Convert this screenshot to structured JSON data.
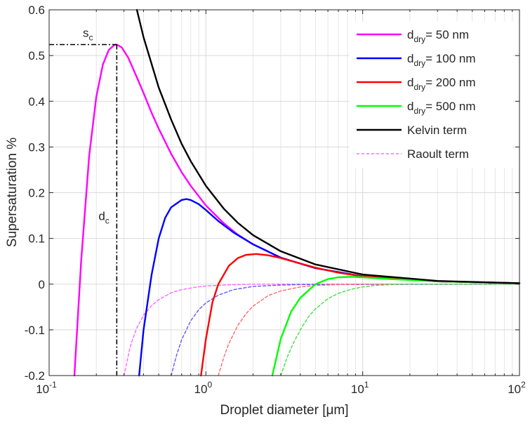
{
  "chart_data": {
    "type": "line",
    "title": "",
    "xlabel": "Droplet diameter [μm]",
    "ylabel": "Supersaturation %",
    "xscale": "log",
    "xlim": [
      0.1,
      100
    ],
    "ylim": [
      -0.2,
      0.6
    ],
    "grid": true,
    "legend_position": "top-right",
    "xticks": [
      {
        "value": 0.1,
        "base": "10",
        "exp": "-1"
      },
      {
        "value": 1,
        "base": "10",
        "exp": "0"
      },
      {
        "value": 10,
        "base": "10",
        "exp": "1"
      },
      {
        "value": 100,
        "base": "10",
        "exp": "2"
      }
    ],
    "yticks": [
      "-0.2",
      "-0.1",
      "0",
      "0.1",
      "0.2",
      "0.3",
      "0.4",
      "0.5",
      "0.6"
    ],
    "series": [
      {
        "name": "d_dry = 50 nm",
        "legend_main": "d",
        "legend_sub": "dry",
        "legend_rest": "= 50 nm",
        "color": "#ff00ff",
        "style": "solid",
        "x": [
          0.145,
          0.16,
          0.18,
          0.2,
          0.22,
          0.24,
          0.26,
          0.27,
          0.29,
          0.32,
          0.36,
          0.4,
          0.45,
          0.5,
          0.6,
          0.7,
          0.8,
          1.0,
          1.3,
          1.6,
          2.0,
          3.0,
          5.0,
          10,
          30,
          100
        ],
        "y": [
          -0.2,
          0.05,
          0.28,
          0.41,
          0.48,
          0.512,
          0.523,
          0.524,
          0.518,
          0.495,
          0.455,
          0.418,
          0.375,
          0.34,
          0.285,
          0.245,
          0.215,
          0.172,
          0.133,
          0.108,
          0.087,
          0.058,
          0.035,
          0.017,
          0.006,
          0.002
        ]
      },
      {
        "name": "d_dry = 100 nm",
        "legend_main": "d",
        "legend_sub": "dry",
        "legend_rest": "= 100 nm",
        "color": "#0000ff",
        "style": "solid",
        "x": [
          0.375,
          0.4,
          0.45,
          0.5,
          0.55,
          0.6,
          0.7,
          0.75,
          0.8,
          0.9,
          1.0,
          1.2,
          1.5,
          2.0,
          3.0,
          5.0,
          10,
          30,
          100
        ],
        "y": [
          -0.2,
          -0.1,
          0.02,
          0.1,
          0.145,
          0.168,
          0.184,
          0.186,
          0.184,
          0.175,
          0.162,
          0.138,
          0.113,
          0.087,
          0.058,
          0.035,
          0.017,
          0.006,
          0.002
        ]
      },
      {
        "name": "d_dry = 200 nm",
        "legend_main": "d",
        "legend_sub": "dry",
        "legend_rest": "= 200 nm",
        "color": "#ff0000",
        "style": "solid",
        "x": [
          0.93,
          1.0,
          1.1,
          1.2,
          1.4,
          1.6,
          1.8,
          2.1,
          2.5,
          3.0,
          4.0,
          5.0,
          7.0,
          10,
          30,
          100
        ],
        "y": [
          -0.2,
          -0.12,
          -0.04,
          0.0,
          0.04,
          0.057,
          0.064,
          0.066,
          0.063,
          0.057,
          0.045,
          0.036,
          0.025,
          0.017,
          0.006,
          0.002
        ]
      },
      {
        "name": "d_dry = 500 nm",
        "legend_main": "d",
        "legend_sub": "dry",
        "legend_rest": "= 500 nm",
        "color": "#00ff00",
        "style": "solid",
        "x": [
          2.65,
          3.0,
          3.5,
          4.0,
          5.0,
          6.0,
          7.0,
          8.5,
          10,
          15,
          30,
          100
        ],
        "y": [
          -0.2,
          -0.12,
          -0.06,
          -0.03,
          0.0,
          0.011,
          0.015,
          0.016,
          0.015,
          0.011,
          0.006,
          0.002
        ]
      },
      {
        "name": "Kelvin term",
        "legend_main": "Kelvin term",
        "legend_sub": "",
        "legend_rest": "",
        "color": "#000000",
        "style": "solid",
        "x": [
          0.363,
          0.4,
          0.5,
          0.6,
          0.7,
          0.8,
          1.0,
          1.3,
          1.6,
          2.0,
          3.0,
          5.0,
          10,
          30,
          100
        ],
        "y": [
          0.6,
          0.54,
          0.43,
          0.36,
          0.307,
          0.269,
          0.215,
          0.165,
          0.134,
          0.107,
          0.072,
          0.043,
          0.021,
          0.007,
          0.002
        ]
      },
      {
        "name": "Raoult term",
        "legend_main": "Raoult term",
        "legend_sub": "",
        "legend_rest": "",
        "color": "#ff66ff",
        "style": "dashed",
        "x": [
          0.3,
          0.33,
          0.36,
          0.4,
          0.45,
          0.5,
          0.6,
          0.7,
          0.85,
          1.0,
          1.3,
          2.0,
          100
        ],
        "y": [
          -0.2,
          -0.135,
          -0.098,
          -0.068,
          -0.047,
          -0.034,
          -0.019,
          -0.012,
          -0.007,
          -0.004,
          -0.002,
          0.0,
          0.0
        ]
      },
      {
        "name": "Raoult term (100 nm)",
        "color": "#5a5aff",
        "style": "dashed",
        "x": [
          0.6,
          0.65,
          0.7,
          0.8,
          0.9,
          1.0,
          1.2,
          1.5,
          2.0,
          3.0,
          4.0,
          100
        ],
        "y": [
          -0.2,
          -0.155,
          -0.122,
          -0.08,
          -0.056,
          -0.041,
          -0.024,
          -0.012,
          -0.005,
          -0.002,
          -0.001,
          0.0
        ]
      },
      {
        "name": "Raoult term (200 nm)",
        "color": "#ff6a6a",
        "style": "dashed",
        "x": [
          1.2,
          1.3,
          1.4,
          1.6,
          1.8,
          2.0,
          2.5,
          3.0,
          4.0,
          5.0,
          7.0,
          10,
          100
        ],
        "y": [
          -0.2,
          -0.16,
          -0.13,
          -0.09,
          -0.065,
          -0.048,
          -0.025,
          -0.015,
          -0.006,
          -0.003,
          -0.001,
          0.0,
          0.0
        ]
      },
      {
        "name": "Raoult term (500 nm)",
        "color": "#44dd44",
        "style": "dashed",
        "x": [
          3.0,
          3.3,
          3.6,
          4.0,
          4.5,
          5.0,
          6.0,
          7.0,
          8.5,
          10,
          12,
          15,
          20,
          100
        ],
        "y": [
          -0.2,
          -0.16,
          -0.13,
          -0.1,
          -0.072,
          -0.054,
          -0.032,
          -0.02,
          -0.011,
          -0.006,
          -0.003,
          -0.001,
          0.0,
          0.0
        ]
      }
    ],
    "annotations": [
      {
        "id": "sc",
        "main": "s",
        "sub": "c",
        "x": 0.27,
        "y": 0.524
      },
      {
        "id": "dc",
        "main": "d",
        "sub": "c",
        "x": 0.27,
        "y": 0.524
      }
    ]
  }
}
